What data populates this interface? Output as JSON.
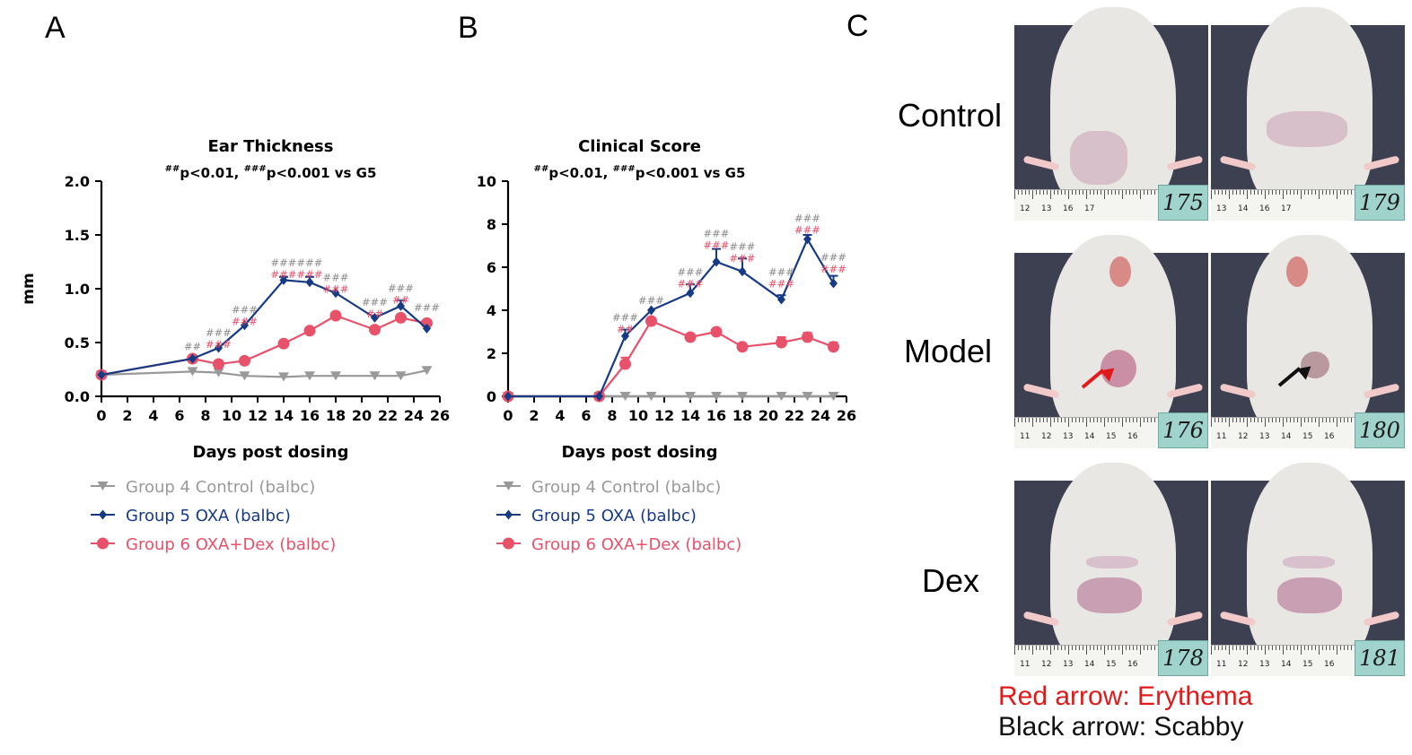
{
  "panels": {
    "a": "A",
    "b": "B",
    "c": "C"
  },
  "colors": {
    "control": "#999999",
    "oxa": "#163a84",
    "dex": "#e8516a",
    "ruler": "#f4f4f0",
    "tag": "#9fd3cc",
    "background": "#3d4051",
    "fur": "#e9e7e4",
    "lesion": "#c98fa5",
    "red_arrow": "#e01a1a",
    "black_arrow": "#111111"
  },
  "chart_data": [
    {
      "type": "line",
      "title": "Ear Thickness",
      "subtitle": {
        "sup1": "##",
        "part1": "p<0.01, ",
        "sup2": "###",
        "part2": "p<0.001 vs G5"
      },
      "xlabel": "Days post dosing",
      "ylabel": "mm",
      "xlim": [
        0,
        26
      ],
      "ylim": [
        0,
        2.0
      ],
      "xticks": [
        0,
        2,
        4,
        6,
        8,
        10,
        12,
        14,
        16,
        18,
        20,
        22,
        24,
        26
      ],
      "yticks": [
        "0.0",
        "0.5",
        "1.0",
        "1.5",
        "2.0"
      ],
      "series": [
        {
          "name": "Group 4 Control (balbc)",
          "color": "#999999",
          "marker": "triangle-down",
          "x": [
            0,
            7,
            9,
            11,
            14,
            16,
            18,
            21,
            23,
            25
          ],
          "values": [
            0.2,
            0.23,
            0.22,
            0.19,
            0.18,
            0.19,
            0.19,
            0.19,
            0.19,
            0.24
          ]
        },
        {
          "name": "Group 5 OXA (balbc)",
          "color": "#163a84",
          "marker": "diamond",
          "x": [
            0,
            7,
            9,
            11,
            14,
            16,
            18,
            21,
            23,
            25
          ],
          "values": [
            0.2,
            0.35,
            0.45,
            0.66,
            1.08,
            1.06,
            0.96,
            0.73,
            0.84,
            0.63
          ],
          "err": [
            0,
            0,
            0,
            0,
            0.03,
            0.05,
            0,
            0,
            0.05,
            0
          ]
        },
        {
          "name": "Group 6 OXA+Dex (balbc)",
          "color": "#e8516a",
          "marker": "circle",
          "x": [
            0,
            7,
            9,
            11,
            14,
            16,
            18,
            21,
            23,
            25
          ],
          "values": [
            0.2,
            0.35,
            0.3,
            0.33,
            0.49,
            0.61,
            0.75,
            0.62,
            0.73,
            0.68
          ]
        }
      ],
      "annotations": [
        {
          "x": 7,
          "y": 0.43,
          "gray": "##",
          "red": ""
        },
        {
          "x": 9,
          "y": 0.56,
          "gray": "###",
          "red": "###"
        },
        {
          "x": 11,
          "y": 0.77,
          "gray": "###",
          "red": "###"
        },
        {
          "x": 14,
          "y": 1.21,
          "gray": "###",
          "red": "###"
        },
        {
          "x": 16,
          "y": 1.21,
          "gray": "###",
          "red": "###"
        },
        {
          "x": 18,
          "y": 1.07,
          "gray": "###",
          "red": "###"
        },
        {
          "x": 21,
          "y": 0.84,
          "gray": "###",
          "red": "##"
        },
        {
          "x": 23,
          "y": 0.97,
          "gray": "###",
          "red": "##"
        },
        {
          "x": 25,
          "y": 0.79,
          "gray": "###",
          "red": ""
        }
      ]
    },
    {
      "type": "line",
      "title": "Clinical Score",
      "subtitle": {
        "sup1": "##",
        "part1": "p<0.01, ",
        "sup2": "###",
        "part2": "p<0.001 vs G5"
      },
      "xlabel": "Days post dosing",
      "ylabel": "",
      "xlim": [
        0,
        26
      ],
      "ylim": [
        0,
        10
      ],
      "xticks": [
        0,
        2,
        4,
        6,
        8,
        10,
        12,
        14,
        16,
        18,
        20,
        22,
        24,
        26
      ],
      "yticks": [
        "0",
        "2",
        "4",
        "6",
        "8",
        "10"
      ],
      "series": [
        {
          "name": "Group 4 Control (balbc)",
          "color": "#999999",
          "marker": "triangle-down",
          "x": [
            0,
            7,
            9,
            11,
            14,
            16,
            18,
            21,
            23,
            25
          ],
          "values": [
            0,
            0,
            0,
            0,
            0,
            0,
            0,
            0,
            0,
            0
          ]
        },
        {
          "name": "Group 5 OXA (balbc)",
          "color": "#163a84",
          "marker": "diamond",
          "x": [
            0,
            7,
            9,
            11,
            14,
            16,
            18,
            21,
            23,
            25
          ],
          "values": [
            0,
            0,
            2.8,
            4.0,
            4.8,
            6.25,
            5.8,
            4.5,
            7.3,
            5.25
          ],
          "err": [
            0,
            0,
            0.3,
            0,
            0.4,
            0.6,
            0.6,
            0.2,
            0.2,
            0.35
          ]
        },
        {
          "name": "Group 6 OXA+Dex (balbc)",
          "color": "#e8516a",
          "marker": "circle",
          "x": [
            0,
            7,
            9,
            11,
            14,
            16,
            18,
            21,
            23,
            25
          ],
          "values": [
            0,
            0,
            1.5,
            3.5,
            2.75,
            3.0,
            2.3,
            2.5,
            2.75,
            2.3
          ],
          "err": [
            0,
            0,
            0.3,
            0,
            0,
            0,
            0,
            0.25,
            0.2,
            0.2
          ]
        }
      ],
      "annotations": [
        {
          "x": 9,
          "y": 3.5,
          "gray": "###",
          "red": "##"
        },
        {
          "x": 11,
          "y": 4.3,
          "gray": "###",
          "red": ""
        },
        {
          "x": 14,
          "y": 5.6,
          "gray": "###",
          "red": "###"
        },
        {
          "x": 16,
          "y": 7.4,
          "gray": "###",
          "red": "###"
        },
        {
          "x": 18,
          "y": 6.8,
          "gray": "###",
          "red": "###"
        },
        {
          "x": 21,
          "y": 5.6,
          "gray": "###",
          "red": "###"
        },
        {
          "x": 23,
          "y": 8.1,
          "gray": "###",
          "red": "###"
        },
        {
          "x": 25,
          "y": 6.3,
          "gray": "###",
          "red": "###"
        }
      ]
    }
  ],
  "photos": {
    "rows": [
      {
        "label": "Control",
        "tags": [
          "175",
          "179"
        ],
        "lesion": "pale",
        "arrows": [
          "",
          ""
        ]
      },
      {
        "label": "Model",
        "tags": [
          "176",
          "180"
        ],
        "lesion": "severe",
        "arrows": [
          "red",
          "black"
        ]
      },
      {
        "label": "Dex",
        "tags": [
          "178",
          "181"
        ],
        "lesion": "mild",
        "arrows": [
          "",
          ""
        ]
      }
    ],
    "ruler_numbers": [
      [
        "12",
        "13",
        "16",
        "17",
        "13",
        "14",
        "16",
        "17"
      ],
      [
        "11",
        "12",
        "13",
        "14",
        "15",
        "16",
        "11",
        "12",
        "13",
        "14",
        "15",
        "16"
      ],
      [
        "11",
        "12",
        "13",
        "14",
        "15",
        "16",
        "11",
        "12",
        "13",
        "14",
        "15",
        "16"
      ]
    ]
  },
  "notes": {
    "red": "Red arrow: Erythema",
    "black": "Black arrow: Scabby"
  }
}
